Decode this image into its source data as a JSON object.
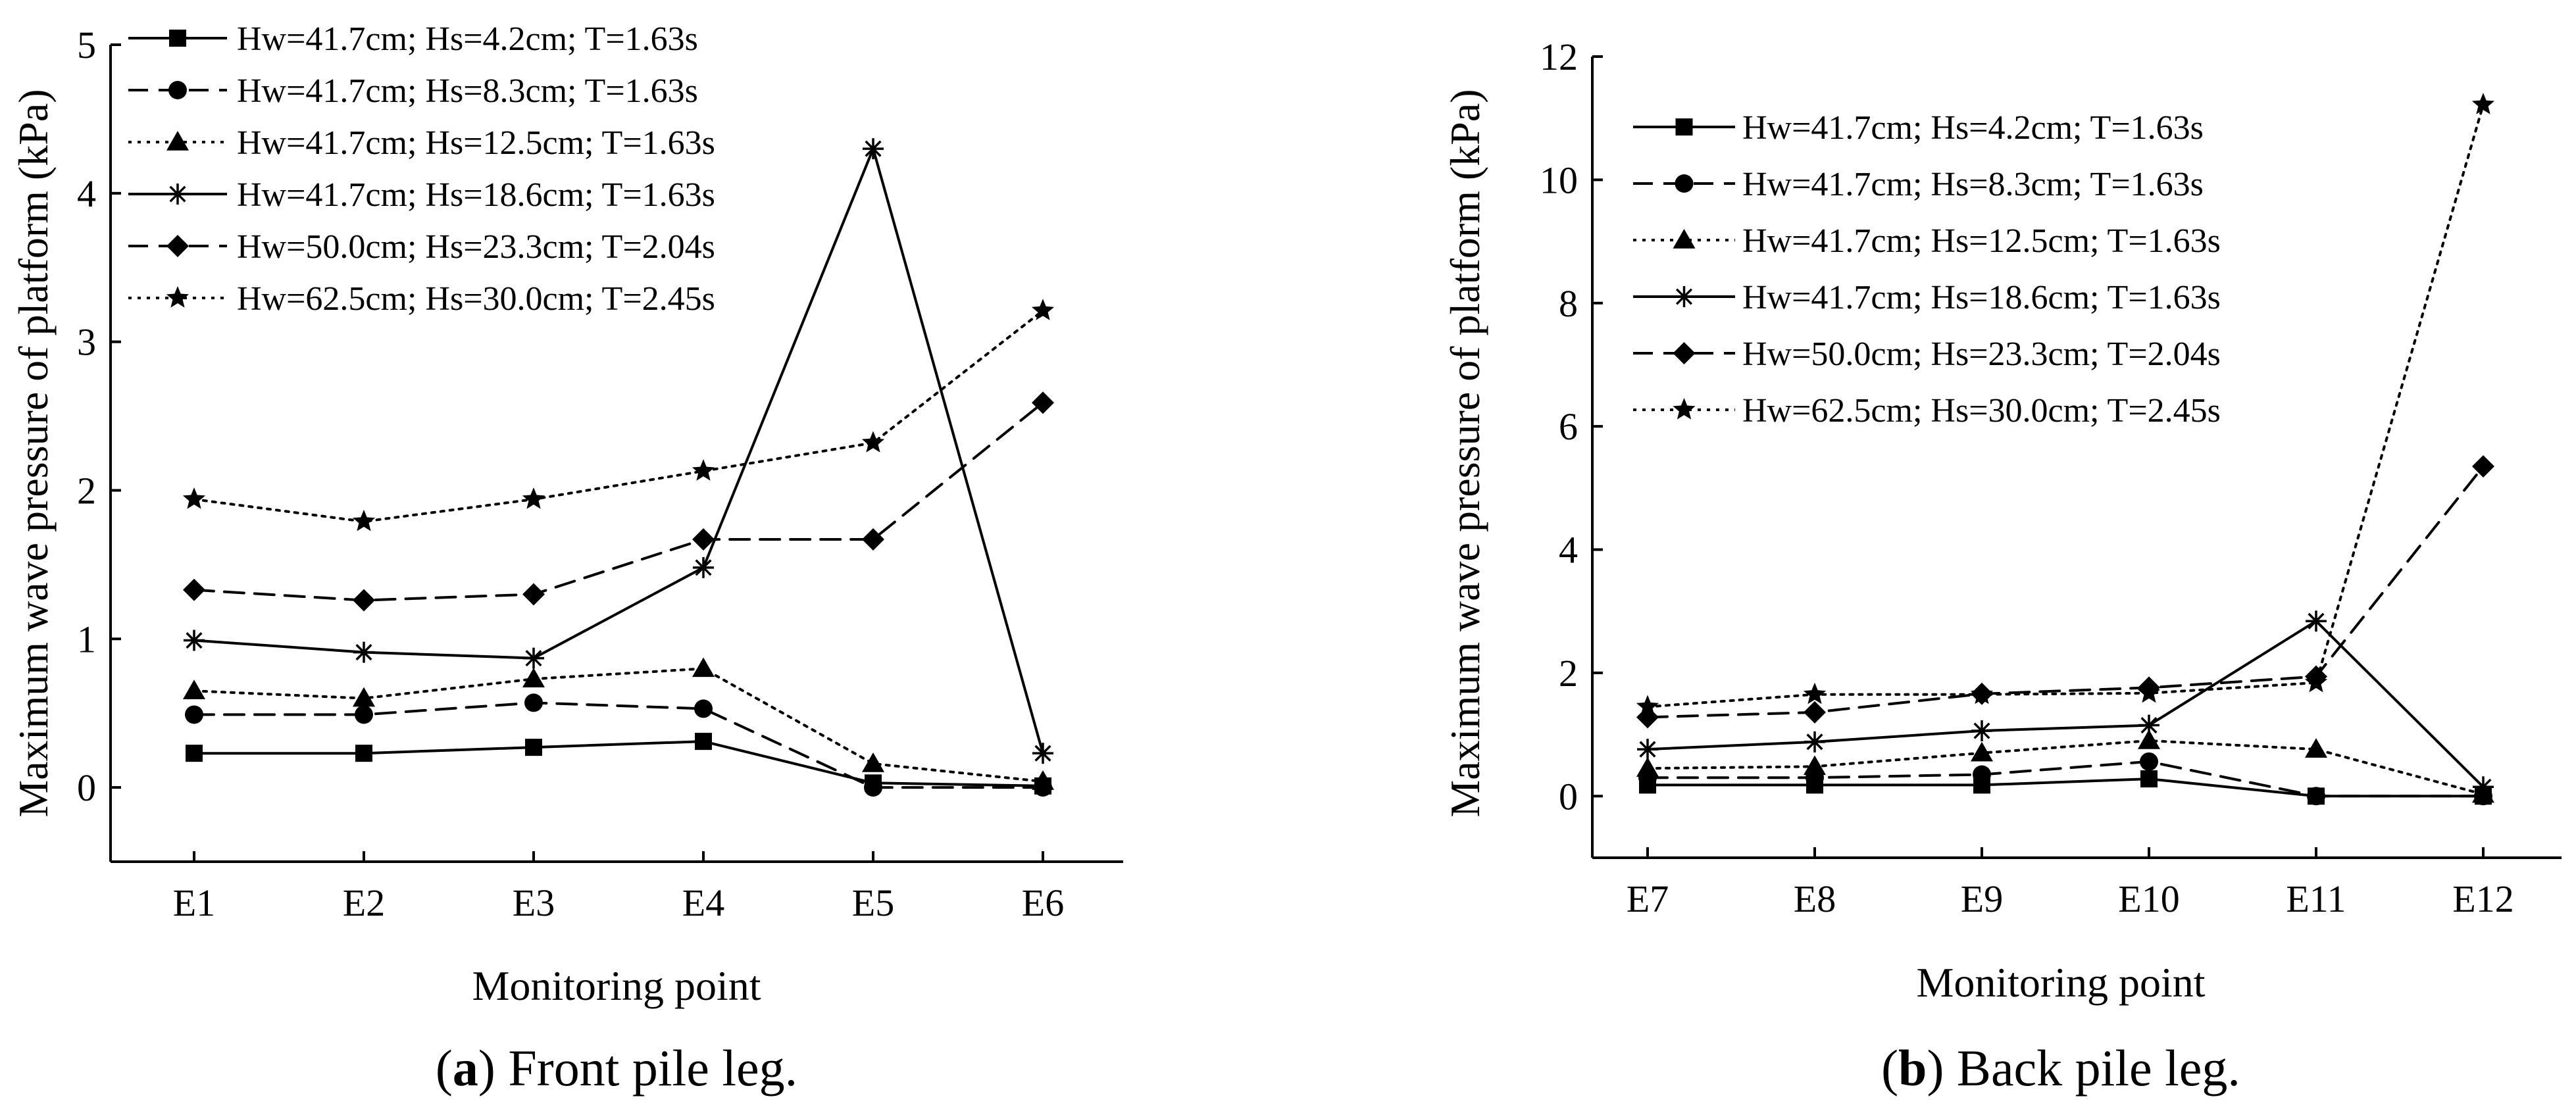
{
  "chart_data": [
    {
      "type": "line",
      "caption_label": "a",
      "caption_text": "Front pile leg.",
      "xlabel": "Monitoring point",
      "ylabel": "Maximum wave pressure of platform (kPa)",
      "categories": [
        "E1",
        "E2",
        "E3",
        "E4",
        "E5",
        "E6"
      ],
      "ylim": [
        -0.5,
        5
      ],
      "yticks": [
        0,
        1,
        2,
        3,
        4,
        5
      ],
      "series": [
        {
          "name": "Hw=41.7cm; Hs=4.2cm; T=1.63s",
          "line": "solid",
          "marker": "square",
          "values": [
            0.23,
            0.23,
            0.27,
            0.31,
            0.03,
            0.01
          ]
        },
        {
          "name": "Hw=41.7cm; Hs=8.3cm; T=1.63s",
          "line": "dashed",
          "marker": "circle",
          "values": [
            0.49,
            0.49,
            0.57,
            0.53,
            0.0,
            0.0
          ]
        },
        {
          "name": "Hw=41.7cm; Hs=12.5cm; T=1.63s",
          "line": "dotted",
          "marker": "triangle",
          "values": [
            0.65,
            0.6,
            0.73,
            0.8,
            0.16,
            0.04
          ]
        },
        {
          "name": "Hw=41.7cm; Hs=18.6cm; T=1.63s",
          "line": "solid",
          "marker": "asterisk",
          "values": [
            0.99,
            0.91,
            0.87,
            1.48,
            4.3,
            0.23
          ]
        },
        {
          "name": "Hw=50.0cm; Hs=23.3cm; T=2.04s",
          "line": "dashed",
          "marker": "diamond",
          "values": [
            1.33,
            1.26,
            1.3,
            1.67,
            1.67,
            2.59
          ]
        },
        {
          "name": "Hw=62.5cm; Hs=30.0cm; T=2.45s",
          "line": "dotted",
          "marker": "star",
          "values": [
            1.94,
            1.79,
            1.94,
            2.13,
            2.32,
            3.21
          ]
        }
      ]
    },
    {
      "type": "line",
      "caption_label": "b",
      "caption_text": "Back pile leg.",
      "xlabel": "Monitoring point",
      "ylabel": "Maximum wave pressure of platform (kPa)",
      "categories": [
        "E7",
        "E8",
        "E9",
        "E10",
        "E11",
        "E12"
      ],
      "ylim": [
        -1,
        12
      ],
      "yticks": [
        0,
        2,
        4,
        6,
        8,
        10,
        12
      ],
      "series": [
        {
          "name": "Hw=41.7cm; Hs=4.2cm; T=1.63s",
          "line": "solid",
          "marker": "square",
          "values": [
            0.18,
            0.18,
            0.18,
            0.28,
            0.0,
            0.0
          ]
        },
        {
          "name": "Hw=41.7cm; Hs=8.3cm; T=1.63s",
          "line": "dashed",
          "marker": "circle",
          "values": [
            0.3,
            0.3,
            0.35,
            0.56,
            0.0,
            0.0
          ]
        },
        {
          "name": "Hw=41.7cm; Hs=12.5cm; T=1.63s",
          "line": "dotted",
          "marker": "triangle",
          "values": [
            0.45,
            0.48,
            0.7,
            0.9,
            0.76,
            0.03
          ]
        },
        {
          "name": "Hw=41.7cm; Hs=18.6cm; T=1.63s",
          "line": "solid",
          "marker": "asterisk",
          "values": [
            0.76,
            0.88,
            1.06,
            1.15,
            2.84,
            0.15
          ]
        },
        {
          "name": "Hw=50.0cm; Hs=23.3cm; T=2.04s",
          "line": "dashed",
          "marker": "diamond",
          "values": [
            1.28,
            1.36,
            1.66,
            1.76,
            1.94,
            5.35
          ]
        },
        {
          "name": "Hw=62.5cm; Hs=30.0cm; T=2.45s",
          "line": "dotted",
          "marker": "star",
          "values": [
            1.45,
            1.65,
            1.65,
            1.67,
            1.84,
            11.22
          ]
        }
      ]
    }
  ]
}
